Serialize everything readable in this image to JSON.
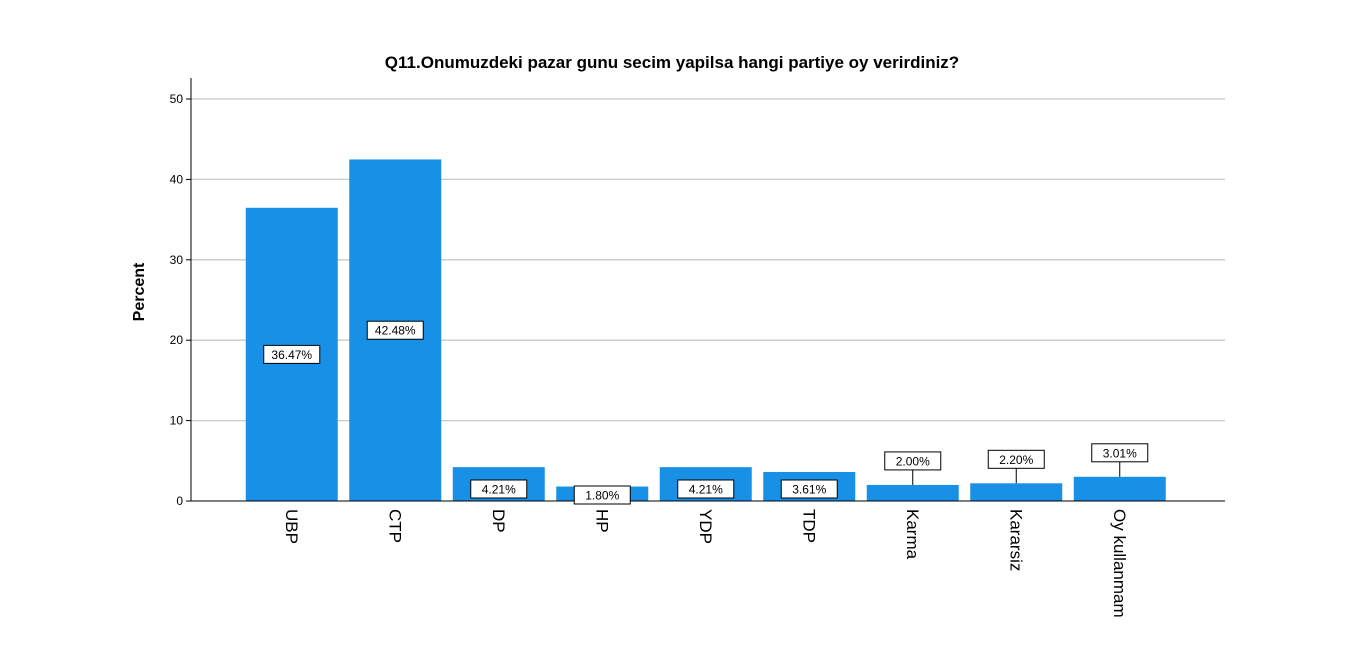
{
  "chart_data": {
    "type": "bar",
    "title": "Q11.Onumuzdeki pazar gunu secim yapilsa hangi partiye oy verirdiniz?",
    "xlabel": "",
    "ylabel": "Percent",
    "ylim": [
      0,
      52
    ],
    "yticks": [
      "0",
      "10",
      "20",
      "30",
      "40",
      "50"
    ],
    "grid": true,
    "bar_color": "#1890e6",
    "categories": [
      "UBP",
      "CTP",
      "DP",
      "HP",
      "YDP",
      "TDP",
      "Karma",
      "Kararsiz",
      "Oy kullanmam"
    ],
    "values": [
      36.47,
      42.48,
      4.21,
      1.8,
      4.21,
      3.61,
      2.0,
      2.2,
      3.01
    ],
    "data_labels": [
      "36.47%",
      "42.48%",
      "4.21%",
      "1.80%",
      "4.21%",
      "3.61%",
      "2.00%",
      "2.20%",
      "3.01%"
    ]
  }
}
